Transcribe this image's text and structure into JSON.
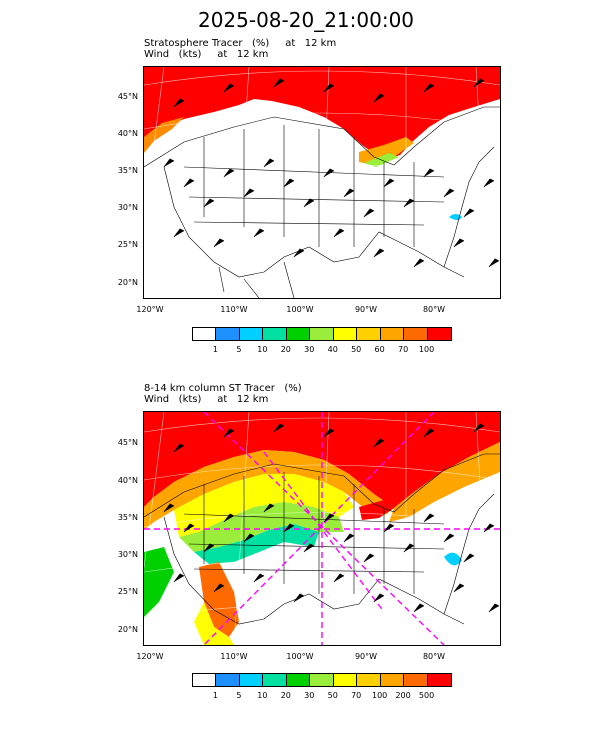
{
  "title": "2025-08-20_21:00:00",
  "panels": [
    {
      "title_line1": "Stratosphere Tracer   (%)     at   12 km",
      "title_line2": "Wind   (kts)     at   12 km",
      "colorbar_labels": [
        "1",
        "5",
        "10",
        "20",
        "30",
        "40",
        "50",
        "60",
        "70",
        "100"
      ],
      "colorbar_colors": [
        "#ffffff",
        "#1e90ff",
        "#00cfff",
        "#00e0a0",
        "#00d000",
        "#9aed3a",
        "#ffff00",
        "#ffd000",
        "#ffa500",
        "#ff6a00",
        "#ff0000"
      ]
    },
    {
      "title_line1": "8-14 km column ST Tracer   (%)",
      "title_line2": "Wind   (kts)     at   12 km",
      "colorbar_labels": [
        "1",
        "5",
        "10",
        "20",
        "30",
        "50",
        "70",
        "100",
        "200",
        "500"
      ],
      "colorbar_colors": [
        "#ffffff",
        "#1e90ff",
        "#00cfff",
        "#00e0a0",
        "#00d000",
        "#9aed3a",
        "#ffff00",
        "#ffd000",
        "#ffa500",
        "#ff6a00",
        "#ff0000"
      ]
    }
  ],
  "lat_labels": [
    "45°N",
    "40°N",
    "35°N",
    "30°N",
    "25°N",
    "20°N"
  ],
  "lat_labels_top": [
    "45°N",
    "40°N",
    "35°N",
    "30°N",
    "25°N",
    "20°N"
  ],
  "lon_labels": [
    "120°W",
    "110°W",
    "100°W",
    "90°W",
    "80°W"
  ],
  "colors": {
    "stratosphere_red": "#ff0000",
    "land_outline": "#000000",
    "grid": "#ffffff",
    "flight_path": "#ff00ff"
  }
}
